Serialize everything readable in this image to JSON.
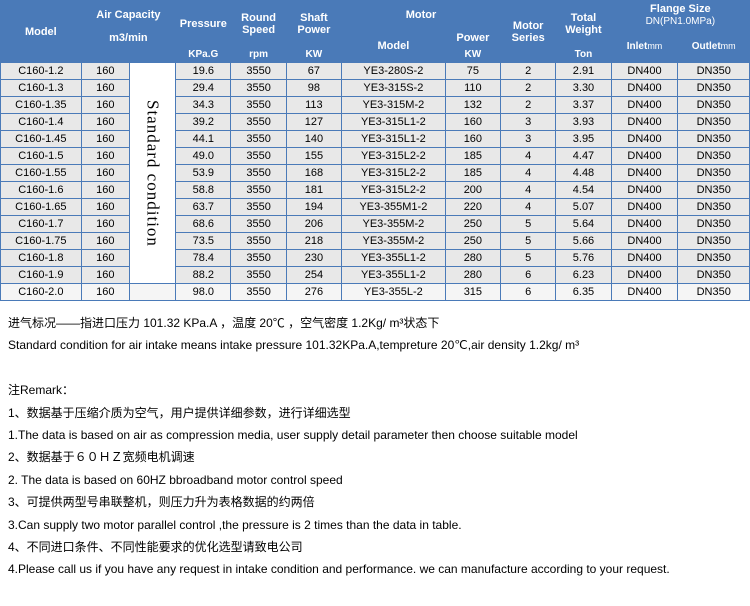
{
  "headers": {
    "model": "Model",
    "airCap": "Air Capacity",
    "airCapUnit": "m3/min",
    "pressure": "Pressure",
    "pressureUnit": "KPa.G",
    "roundSpeed": "Round Speed",
    "roundSpeedUnit": "rpm",
    "shaftPower": "Shaft Power",
    "shaftPowerUnit": "KW",
    "motor": "Motor",
    "motorModel": "Model",
    "motorPower": "Power",
    "motorPowerUnit": "KW",
    "motorSeries": "Motor Series",
    "totalWeight": "Total Weight",
    "totalWeightUnit": "Ton",
    "flangeSize": "Flange Size",
    "flangeSizeSub": "DN(PN1.0MPa)",
    "inlet": "Inlet",
    "outlet": "Outlet",
    "mm": "mm",
    "stdCond": "Standard condition"
  },
  "rows": [
    {
      "model": "C160-1.2",
      "air": "160",
      "p": "19.6",
      "rpm": "3550",
      "kw": "67",
      "mmodel": "YE3-280S-2",
      "mpw": "75",
      "ms": "2",
      "tw": "2.91",
      "in": "DN400",
      "out": "DN350"
    },
    {
      "model": "C160-1.3",
      "air": "160",
      "p": "29.4",
      "rpm": "3550",
      "kw": "98",
      "mmodel": "YE3-315S-2",
      "mpw": "110",
      "ms": "2",
      "tw": "3.30",
      "in": "DN400",
      "out": "DN350"
    },
    {
      "model": "C160-1.35",
      "air": "160",
      "p": "34.3",
      "rpm": "3550",
      "kw": "113",
      "mmodel": "YE3-315M-2",
      "mpw": "132",
      "ms": "2",
      "tw": "3.37",
      "in": "DN400",
      "out": "DN350"
    },
    {
      "model": "C160-1.4",
      "air": "160",
      "p": "39.2",
      "rpm": "3550",
      "kw": "127",
      "mmodel": "YE3-315L1-2",
      "mpw": "160",
      "ms": "3",
      "tw": "3.93",
      "in": "DN400",
      "out": "DN350"
    },
    {
      "model": "C160-1.45",
      "air": "160",
      "p": "44.1",
      "rpm": "3550",
      "kw": "140",
      "mmodel": "YE3-315L1-2",
      "mpw": "160",
      "ms": "3",
      "tw": "3.95",
      "in": "DN400",
      "out": "DN350"
    },
    {
      "model": "C160-1.5",
      "air": "160",
      "p": "49.0",
      "rpm": "3550",
      "kw": "155",
      "mmodel": "YE3-315L2-2",
      "mpw": "185",
      "ms": "4",
      "tw": "4.47",
      "in": "DN400",
      "out": "DN350"
    },
    {
      "model": "C160-1.55",
      "air": "160",
      "p": "53.9",
      "rpm": "3550",
      "kw": "168",
      "mmodel": "YE3-315L2-2",
      "mpw": "185",
      "ms": "4",
      "tw": "4.48",
      "in": "DN400",
      "out": "DN350"
    },
    {
      "model": "C160-1.6",
      "air": "160",
      "p": "58.8",
      "rpm": "3550",
      "kw": "181",
      "mmodel": "YE3-315L2-2",
      "mpw": "200",
      "ms": "4",
      "tw": "4.54",
      "in": "DN400",
      "out": "DN350"
    },
    {
      "model": "C160-1.65",
      "air": "160",
      "p": "63.7",
      "rpm": "3550",
      "kw": "194",
      "mmodel": "YE3-355M1-2",
      "mpw": "220",
      "ms": "4",
      "tw": "5.07",
      "in": "DN400",
      "out": "DN350"
    },
    {
      "model": "C160-1.7",
      "air": "160",
      "p": "68.6",
      "rpm": "3550",
      "kw": "206",
      "mmodel": "YE3-355M-2",
      "mpw": "250",
      "ms": "5",
      "tw": "5.64",
      "in": "DN400",
      "out": "DN350"
    },
    {
      "model": "C160-1.75",
      "air": "160",
      "p": "73.5",
      "rpm": "3550",
      "kw": "218",
      "mmodel": "YE3-355M-2",
      "mpw": "250",
      "ms": "5",
      "tw": "5.66",
      "in": "DN400",
      "out": "DN350"
    },
    {
      "model": "C160-1.8",
      "air": "160",
      "p": "78.4",
      "rpm": "3550",
      "kw": "230",
      "mmodel": "YE3-355L1-2",
      "mpw": "280",
      "ms": "5",
      "tw": "5.76",
      "in": "DN400",
      "out": "DN350"
    },
    {
      "model": "C160-1.9",
      "air": "160",
      "p": "88.2",
      "rpm": "3550",
      "kw": "254",
      "mmodel": "YE3-355L1-2",
      "mpw": "280",
      "ms": "6",
      "tw": "6.23",
      "in": "DN400",
      "out": "DN350"
    },
    {
      "model": "C160-2.0",
      "air": "160",
      "p": "98.0",
      "rpm": "3550",
      "kw": "276",
      "mmodel": "YE3-355L-2",
      "mpw": "315",
      "ms": "6",
      "tw": "6.35",
      "in": "DN400",
      "out": "DN350"
    }
  ],
  "notes": {
    "l1": "进气标况——指进口压力 101.32 KPa.A ，温度 20℃ ，空气密度 1.2Kg/ m³状态下",
    "l2": "Standard condition for air intake means intake pressure 101.32KPa.A,tempreture 20℃,air density 1.2kg/ m³",
    "l3": "注Remark：",
    "l4": "1、数据基于压缩介质为空气，用户提供详细参数，进行详细选型",
    "l5": "1.The data is based on air as compression media, user supply detail parameter then choose suitable model",
    "l6": "2、数据基于６０ＨＺ宽频电机调速",
    "l7": "2. The data is based on 60HZ bbroadband motor control speed",
    "l8": "3、可提供两型号串联整机，则压力升为表格数据的约两倍",
    "l9": "3.Can supply two motor parallel control ,the pressure is 2 times than the data in table.",
    "l10": "4、不同进口条件、不同性能要求的优化选型请致电公司",
    "l11": "4.Please call us if you have any request in intake condition and performance. we can manufacture according to your request."
  }
}
